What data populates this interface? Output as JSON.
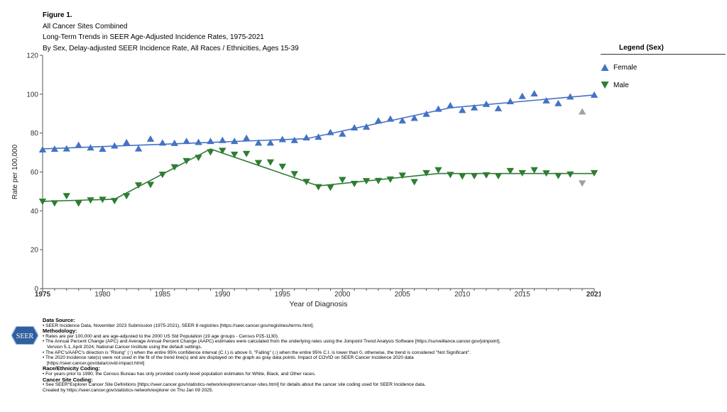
{
  "header": {
    "figure_label": "Figure 1.",
    "line1": "All Cancer Sites Combined",
    "line2": "Long-Term Trends in SEER Age-Adjusted Incidence Rates, 1975-2021",
    "line3": "By Sex, Delay-adjusted SEER Incidence Rate, All Races / Ethnicities, Ages 15-39"
  },
  "legend": {
    "title": "Legend (Sex)",
    "female": "Female",
    "male": "Male"
  },
  "colors": {
    "female": "#4472c4",
    "male": "#2e7d32",
    "excluded": "#a0a0a0",
    "axis": "#555555"
  },
  "chart_data": {
    "type": "scatter",
    "xlabel": "Year of Diagnosis",
    "ylabel": "Rate per 100,000",
    "xlim": [
      1975,
      2021
    ],
    "ylim": [
      0,
      120
    ],
    "y_ticks": [
      0,
      20,
      40,
      60,
      80,
      100,
      120
    ],
    "x_ticks": [
      "1975",
      "1980",
      "1985",
      "1990",
      "1995",
      "2000",
      "2005",
      "2010",
      "2015",
      "2021"
    ],
    "x_tick_values": [
      1975,
      1980,
      1985,
      1990,
      1995,
      2000,
      2005,
      2010,
      2015,
      2021
    ],
    "bold_x_ticks": [
      1975,
      2021
    ],
    "excluded_year": 2020,
    "years": [
      1975,
      1976,
      1977,
      1978,
      1979,
      1980,
      1981,
      1982,
      1983,
      1984,
      1985,
      1986,
      1987,
      1988,
      1989,
      1990,
      1991,
      1992,
      1993,
      1994,
      1995,
      1996,
      1997,
      1998,
      1999,
      2000,
      2001,
      2002,
      2003,
      2004,
      2005,
      2006,
      2007,
      2008,
      2009,
      2010,
      2011,
      2012,
      2013,
      2014,
      2015,
      2016,
      2017,
      2018,
      2019,
      2020,
      2021
    ],
    "series": [
      {
        "name": "Female",
        "marker": "triangle-up",
        "values": [
          71.5,
          71.8,
          72.0,
          73.8,
          72.5,
          71.8,
          73.5,
          75.2,
          72.0,
          77.0,
          75.0,
          74.8,
          75.8,
          75.3,
          75.8,
          76.3,
          75.8,
          77.4,
          75.0,
          75.0,
          76.8,
          76.3,
          77.7,
          78.0,
          80.4,
          79.6,
          82.8,
          83.2,
          86.4,
          87.3,
          86.4,
          87.7,
          89.8,
          92.4,
          94.2,
          91.8,
          93.1,
          94.9,
          92.7,
          96.3,
          99.0,
          100.3,
          96.7,
          95.3,
          98.7,
          91.0,
          99.6
        ],
        "trend": [
          [
            1975,
            71.9
          ],
          [
            1997,
            77.1
          ],
          [
            2009,
            93.0
          ],
          [
            2021,
            99.6
          ]
        ]
      },
      {
        "name": "Male",
        "marker": "triangle-down",
        "values": [
          44.8,
          44.0,
          47.7,
          43.9,
          45.5,
          45.8,
          45.2,
          47.7,
          53.2,
          53.5,
          58.7,
          62.5,
          65.7,
          67.4,
          70.2,
          71.0,
          69.0,
          69.4,
          64.7,
          65.0,
          62.8,
          59.0,
          55.0,
          52.3,
          52.0,
          56.0,
          54.0,
          55.4,
          55.5,
          56.2,
          58.2,
          54.9,
          59.5,
          61.0,
          58.6,
          57.8,
          58.0,
          58.4,
          58.0,
          60.6,
          59.5,
          61.0,
          59.4,
          58.1,
          58.8,
          54.2,
          59.5
        ],
        "trend": [
          [
            1975,
            44.9
          ],
          [
            1981,
            46.0
          ],
          [
            1989,
            71.8
          ],
          [
            1998,
            52.8
          ],
          [
            2008,
            59.2
          ],
          [
            2021,
            59.2
          ]
        ]
      }
    ]
  },
  "footer": {
    "logo_text": "SEER",
    "data_source_heading": "Data Source:",
    "data_source_1": "• SEER Incidence Data, November 2023 Submission (1975-2021), SEER 8 registries [https://seer.cancer.gov/registries/terms.html].",
    "methodology_heading": "Methodology:",
    "m1": "• Rates are per 100,000 and are age-adjusted to the 2000 US Std Population (19 age groups - Census P25-1130).",
    "m2": "• The Annual Percent Change (APC) and Average Annual Percent Change (AAPC) estimates were calculated from the underlying rates using the Joinpoint Trend Analysis Software [https://surveillance.cancer.gov/joinpoint],",
    "m2b": "Version 5.1, April 2024, National Cancer Institute using the default settings.",
    "m3": "• The APC's/AAPC's direction is \"Rising\" (↑) when the entire 95% confidence interval (C.I.) is above 0, \"Falling\" (↓) when the entire 95% C.I. is lower than 0, otherwise, the trend is considered \"Not Significant\".",
    "m4": "• The 2020 incidence rate(s) were not used in the fit of the trend line(s) and are displayed on the graph as gray data points. Impact of COVID on SEER Cancer Incidence 2020 data",
    "m4b": "[https://seer.cancer.gov/data/covid-impact.html]",
    "race_heading": "Race/Ethnicity Coding:",
    "r1": "• For years prior to 1990, the Census Bureau has only provided county-level population estimates for White, Black, and Other races.",
    "site_heading": "Cancer Site Coding:",
    "s1": "• See SEER*Explorer Cancer Site Definitions [https://seer.cancer.gov/statistics-network/explorer/cancer-sites.html] for details about the cancer site coding used for SEER Incidence data.",
    "created": "Created by https://seer.cancer.gov/statistics-network/explorer on Thu Jan 09 2025."
  }
}
